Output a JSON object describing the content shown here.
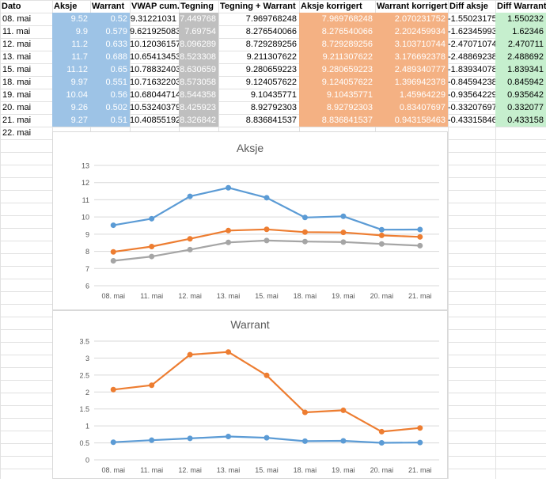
{
  "headers": [
    "Dato",
    "Aksje",
    "Warrant",
    "VWAP cum.",
    "Tegning",
    "Tegning + Warrant",
    "Aksje korrigert",
    "Warrant korrigert",
    "Diff aksje",
    "Diff Warrant"
  ],
  "rows": [
    [
      "08. mai",
      "9.52",
      "0.52",
      "9.31221031",
      "7.449768",
      "7.969768248",
      "7.969768248",
      "2.070231752",
      "-1.55023175",
      "1.550232"
    ],
    [
      "11. mai",
      "9.9",
      "0.579",
      "9.621925083",
      "7.69754",
      "8.276540066",
      "8.276540066",
      "2.202459934",
      "-1.62345993",
      "1.62346"
    ],
    [
      "12. mai",
      "11.2",
      "0.633",
      "10.12036157",
      "8.096289",
      "8.729289256",
      "8.729289256",
      "3.103710744",
      "-2.47071074",
      "2.470711"
    ],
    [
      "13. mai",
      "11.7",
      "0.688",
      "10.65413453",
      "8.523308",
      "9.211307622",
      "9.211307622",
      "3.176692378",
      "-2.48869238",
      "2.488692"
    ],
    [
      "15. mai",
      "11.12",
      "0.65",
      "10.78832403",
      "8.630659",
      "9.280659223",
      "9.280659223",
      "2.489340777",
      "-1.83934078",
      "1.839341"
    ],
    [
      "18. mai",
      "9.97",
      "0.551",
      "10.71632203",
      "8.573058",
      "9.124057622",
      "9.124057622",
      "1.396942378",
      "-0.84594238",
      "0.845942"
    ],
    [
      "19. mai",
      "10.04",
      "0.56",
      "10.68044714",
      "8.544358",
      "9.10435771",
      "9.10435771",
      "1.45964229",
      "-0.93564229",
      "0.935642"
    ],
    [
      "20. mai",
      "9.26",
      "0.502",
      "10.53240379",
      "8.425923",
      "8.92792303",
      "8.92792303",
      "0.83407697",
      "-0.33207697",
      "0.332077"
    ],
    [
      "21. mai",
      "9.27",
      "0.51",
      "10.40855192",
      "8.326842",
      "8.836841537",
      "8.836841537",
      "0.943158463",
      "-0.43315846",
      "0.433158"
    ],
    [
      "22. mai",
      "",
      "",
      "",
      "",
      "",
      "",
      "",
      "",
      ""
    ]
  ],
  "colors": {
    "blue": "#9dc3e6",
    "gray": "#bfbfbf",
    "orange": "#f4b183",
    "green": "#c6efce",
    "s1": "#5b9bd5",
    "s2": "#ed7d31",
    "s3": "#a5a5a5",
    "grid": "#d9d9d9",
    "axis": "#595959"
  },
  "chart_data": [
    {
      "type": "line",
      "title": "Aksje",
      "categories": [
        "08. mai",
        "11. mai",
        "12. mai",
        "13. mai",
        "15. mai",
        "18. mai",
        "19. mai",
        "20. mai",
        "21. mai"
      ],
      "yticks": [
        "6",
        "7",
        "8",
        "9",
        "10",
        "11",
        "12",
        "13"
      ],
      "ylim": [
        6,
        13
      ],
      "series": [
        {
          "values": [
            9.52,
            9.9,
            11.2,
            11.7,
            11.12,
            9.97,
            10.04,
            9.26,
            9.27
          ]
        },
        {
          "values": [
            7.97,
            8.28,
            8.73,
            9.21,
            9.28,
            9.12,
            9.1,
            8.93,
            8.84
          ]
        },
        {
          "values": [
            7.45,
            7.7,
            8.1,
            8.52,
            8.63,
            8.57,
            8.54,
            8.43,
            8.33
          ]
        }
      ],
      "grid": true
    },
    {
      "type": "line",
      "title": "Warrant",
      "categories": [
        "08. mai",
        "11. mai",
        "12. mai",
        "13. mai",
        "15. mai",
        "18. mai",
        "19. mai",
        "20. mai",
        "21. mai"
      ],
      "yticks": [
        "0",
        "0.5",
        "1",
        "1.5",
        "2",
        "2.5",
        "3",
        "3.5"
      ],
      "ylim": [
        0,
        3.5
      ],
      "series": [
        {
          "values": [
            0.52,
            0.579,
            0.633,
            0.688,
            0.65,
            0.551,
            0.56,
            0.502,
            0.51
          ]
        },
        {
          "values": [
            2.07,
            2.2,
            3.1,
            3.18,
            2.49,
            1.4,
            1.46,
            0.83,
            0.94
          ]
        }
      ],
      "grid": true
    }
  ]
}
